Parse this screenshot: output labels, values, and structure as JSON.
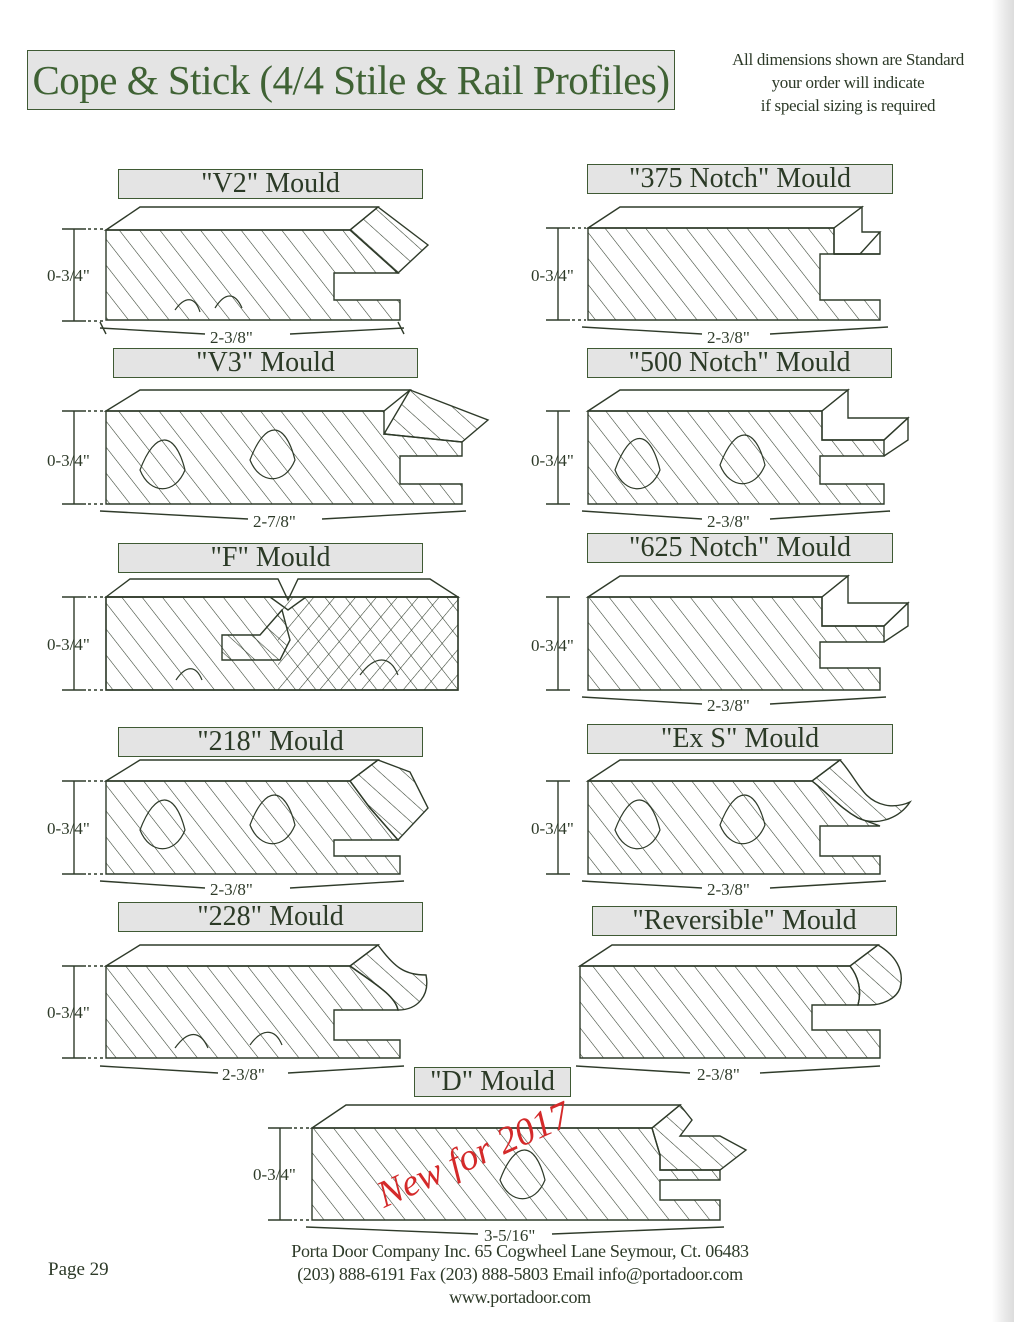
{
  "header": {
    "title": "Cope & Stick (4/4 Stile & Rail Profiles)",
    "note_lines": [
      "All dimensions shown are Standard",
      "your order will indicate",
      "if special sizing is required"
    ]
  },
  "profiles": [
    {
      "name": "\"V2\" Mould",
      "height_label": "0-3/4\"",
      "width_label": "2-3/8\""
    },
    {
      "name": "\"375 Notch\" Mould",
      "height_label": "0-3/4\"",
      "width_label": "2-3/8\""
    },
    {
      "name": "\"V3\" Mould",
      "height_label": "0-3/4\"",
      "width_label": "2-7/8\""
    },
    {
      "name": "\"500 Notch\" Mould",
      "height_label": "0-3/4\"",
      "width_label": "2-3/8\""
    },
    {
      "name": "\"F\" Mould",
      "height_label": "0-3/4\"",
      "width_label": ""
    },
    {
      "name": "\"625 Notch\" Mould",
      "height_label": "0-3/4\"",
      "width_label": "2-3/8\""
    },
    {
      "name": "\"218\" Mould",
      "height_label": "0-3/4\"",
      "width_label": "2-3/8\""
    },
    {
      "name": "\"Ex S\" Mould",
      "height_label": "0-3/4\"",
      "width_label": "2-3/8\""
    },
    {
      "name": "\"228\" Mould",
      "height_label": "0-3/4\"",
      "width_label": "2-3/8\""
    },
    {
      "name": "\"Reversible\" Mould",
      "height_label": "",
      "width_label": "2-3/8\""
    },
    {
      "name": "\"D\" Mould",
      "height_label": "0-3/4\"",
      "width_label": "3-5/16\"",
      "stamp": "New for 2017"
    }
  ],
  "footer": {
    "company_line": "Porta Door Company Inc. 65 Cogwheel Lane Seymour, Ct. 06483",
    "contact_line": "(203) 888-6191 Fax (203) 888-5803 Email info@portadoor.com",
    "website": "www.portadoor.com",
    "page_label": "Page 29"
  },
  "colors": {
    "frame": "#3f5a34",
    "line": "#2f3b2a",
    "label_bg": "#e4e4e4",
    "stamp": "#d42a2a"
  }
}
